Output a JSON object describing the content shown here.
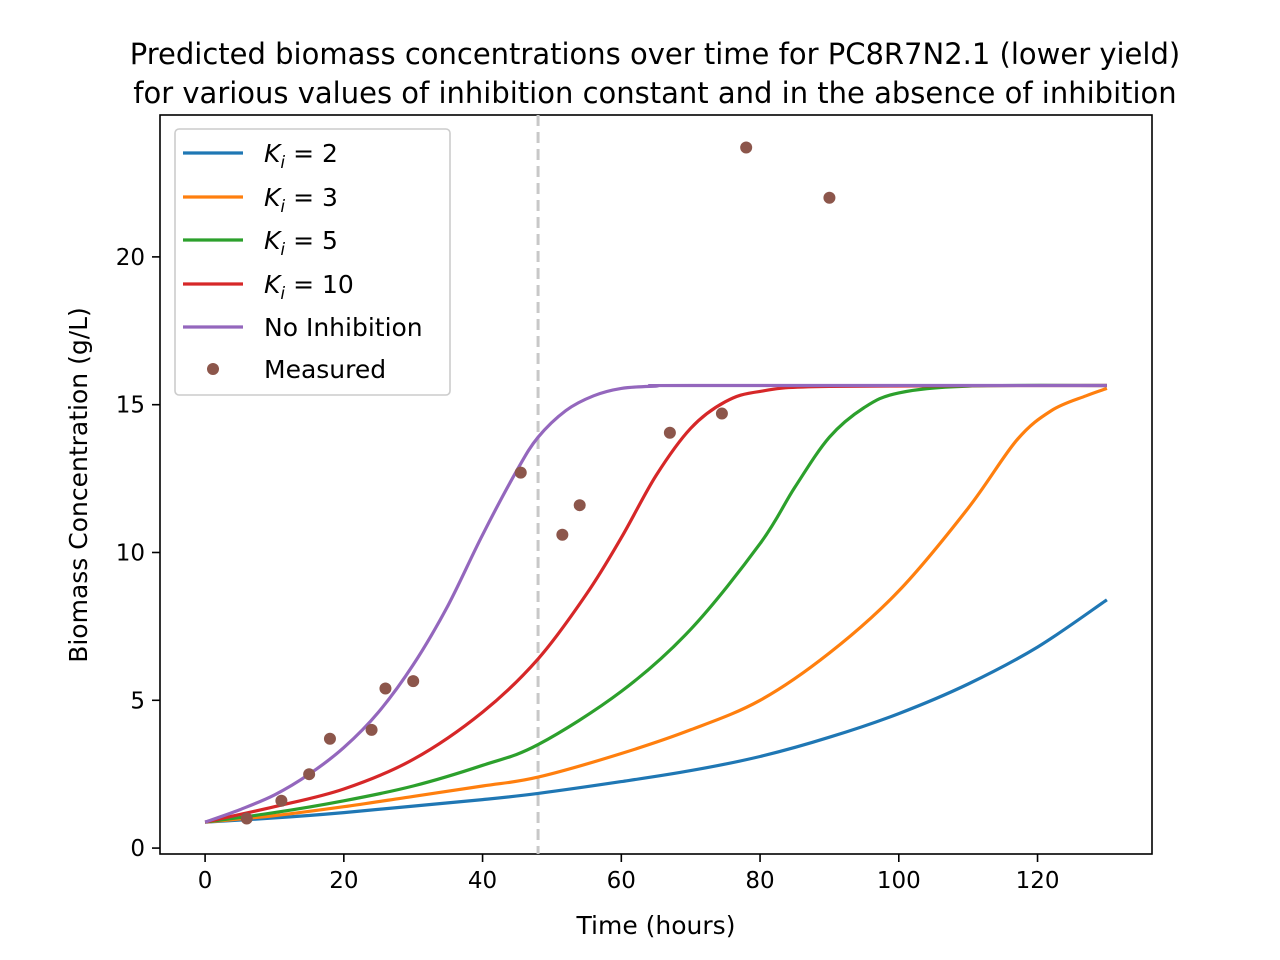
{
  "chart_data": {
    "type": "line",
    "title": [
      "Predicted biomass concentrations over time for PC8R7N2.1 (lower yield)",
      "for various values of inhibition constant and in the absence of inhibition"
    ],
    "xlabel": "Time (hours)",
    "ylabel": "Biomass Concentration (g/L)",
    "xlim": [
      -6.5,
      136.5
    ],
    "ylim": [
      -0.2,
      24.8
    ],
    "xticks": [
      0,
      20,
      40,
      60,
      80,
      100,
      120
    ],
    "yticks": [
      0,
      5,
      10,
      15,
      20
    ],
    "grid": false,
    "legend_position": "top-left",
    "vline": {
      "x": 48,
      "style": "dashed",
      "color": "#c8c8c8"
    },
    "series": [
      {
        "name": "K_i = 2",
        "color": "#1f77b4",
        "x": [
          0,
          10,
          20,
          30,
          40,
          48,
          60,
          70,
          80,
          90,
          100,
          110,
          120,
          130
        ],
        "values": [
          0.88,
          1.02,
          1.2,
          1.42,
          1.64,
          1.85,
          2.25,
          2.62,
          3.1,
          3.75,
          4.55,
          5.55,
          6.8,
          8.4
        ]
      },
      {
        "name": "K_i = 3",
        "color": "#ff7f0e",
        "x": [
          0,
          10,
          20,
          30,
          40,
          48,
          60,
          70,
          80,
          90,
          100,
          110,
          117,
          122,
          127,
          130
        ],
        "values": [
          0.88,
          1.1,
          1.4,
          1.75,
          2.1,
          2.4,
          3.2,
          4.0,
          5.0,
          6.6,
          8.7,
          11.5,
          13.8,
          14.8,
          15.3,
          15.55
        ]
      },
      {
        "name": "K_i = 5",
        "color": "#2ca02c",
        "x": [
          0,
          10,
          20,
          30,
          40,
          48,
          60,
          70,
          80,
          85,
          90,
          95,
          100,
          110,
          130
        ],
        "values": [
          0.88,
          1.2,
          1.6,
          2.1,
          2.8,
          3.5,
          5.3,
          7.4,
          10.3,
          12.2,
          13.9,
          14.9,
          15.4,
          15.63,
          15.65
        ]
      },
      {
        "name": "K_i = 10",
        "color": "#d62728",
        "x": [
          0,
          10,
          20,
          30,
          40,
          48,
          55,
          60,
          65,
          70,
          75,
          80,
          90,
          130
        ],
        "values": [
          0.88,
          1.4,
          2.0,
          3.0,
          4.6,
          6.4,
          8.6,
          10.5,
          12.6,
          14.2,
          15.1,
          15.45,
          15.62,
          15.65
        ]
      },
      {
        "name": "No Inhibition",
        "color": "#9467bd",
        "x": [
          0,
          5,
          10,
          15,
          20,
          25,
          30,
          35,
          40,
          45,
          48,
          52,
          56,
          60,
          65,
          70,
          130
        ],
        "values": [
          0.88,
          1.3,
          1.8,
          2.5,
          3.4,
          4.6,
          6.2,
          8.2,
          10.6,
          12.8,
          13.9,
          14.8,
          15.3,
          15.55,
          15.63,
          15.65,
          15.65
        ]
      }
    ],
    "measured": {
      "name": "Measured",
      "color": "#8c564b",
      "x": [
        6,
        11,
        15,
        18,
        24,
        26,
        30,
        45.5,
        51.5,
        54,
        67,
        74.5,
        78,
        90
      ],
      "values": [
        1.0,
        1.6,
        2.5,
        3.7,
        4.0,
        5.4,
        5.65,
        12.7,
        10.6,
        11.6,
        14.05,
        14.7,
        23.7,
        22.0
      ]
    },
    "legend_labels": [
      {
        "sym": "K",
        "sub": "i",
        "eq": " = 2"
      },
      {
        "sym": "K",
        "sub": "i",
        "eq": " = 3"
      },
      {
        "sym": "K",
        "sub": "i",
        "eq": " = 5"
      },
      {
        "sym": "K",
        "sub": "i",
        "eq": " = 10"
      },
      {
        "text": "No Inhibition"
      },
      {
        "text": "Measured"
      }
    ]
  }
}
